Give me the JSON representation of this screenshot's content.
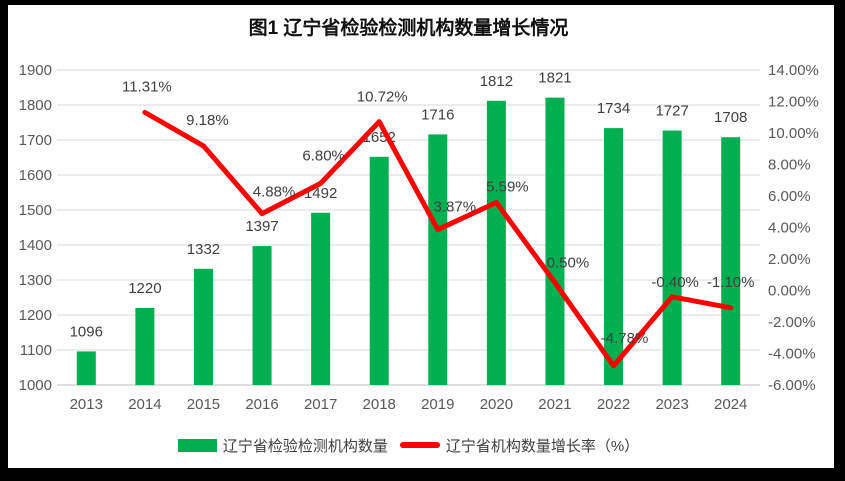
{
  "chart_data": {
    "type": "combo-bar-line",
    "title": "图1 辽宁省检验检测机构数量增长情况",
    "categories": [
      "2013",
      "2014",
      "2015",
      "2016",
      "2017",
      "2018",
      "2019",
      "2020",
      "2021",
      "2022",
      "2023",
      "2024"
    ],
    "series": [
      {
        "name": "辽宁省检验检测机构数量",
        "type": "bar",
        "axis": "left",
        "color": "#00B050",
        "values": [
          1096,
          1220,
          1332,
          1397,
          1492,
          1652,
          1716,
          1812,
          1821,
          1734,
          1727,
          1708
        ],
        "data_labels": [
          "1096",
          "1220",
          "1332",
          "1397",
          "1492",
          "1652",
          "1716",
          "1812",
          "1821",
          "1734",
          "1727",
          "1708"
        ]
      },
      {
        "name": "辽宁省机构数量增长率（%）",
        "type": "line",
        "axis": "right",
        "color": "#FF0000",
        "values": [
          null,
          11.31,
          9.18,
          4.88,
          6.8,
          10.72,
          3.87,
          5.59,
          0.5,
          -4.78,
          -0.4,
          -1.1
        ],
        "data_labels": [
          "",
          "11.31%",
          "9.18%",
          "4.88%",
          "6.80%",
          "10.72%",
          "3.87%",
          "5.59%",
          "0.50%",
          "-4.78%",
          "-0.40%",
          "-1.10%"
        ]
      }
    ],
    "left_axis": {
      "min": 1000,
      "max": 1900,
      "step": 100,
      "tick_labels_top_to_bottom": [
        "1900",
        "1800",
        "1700",
        "1600",
        "1500",
        "1400",
        "1300",
        "1200",
        "1100",
        "1000"
      ]
    },
    "right_axis": {
      "min": -6,
      "max": 14,
      "step": 2,
      "tick_labels_top_to_bottom": [
        "14.00%",
        "12.00%",
        "10.00%",
        "8.00%",
        "6.00%",
        "4.00%",
        "2.00%",
        "0.00%",
        "-2.00%",
        "-4.00%",
        "-6.00%"
      ]
    },
    "gridlines": "horizontal",
    "legend_position": "bottom",
    "colors": {
      "bar": "#00B050",
      "line": "#FF0000",
      "gridline": "#D9D9D9",
      "axis_line": "#BFBFBF",
      "axis_text": "#595959",
      "data_label_text": "#404040",
      "frame": "#000000",
      "background": "#FFFFFF"
    }
  }
}
